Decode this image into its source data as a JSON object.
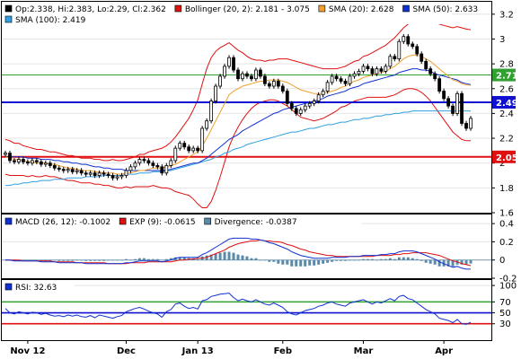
{
  "chart_data": [
    {
      "type": "candlestick",
      "legend": [
        {
          "label": "Op:2.338,  Hi:2.383,  Lo:2.29,  Cl:2.362",
          "color": "#000000"
        },
        {
          "label": "Bollinger (20, 2): 2.181 - 3.075",
          "color": "#e01010"
        },
        {
          "label": "SMA (20): 2.628",
          "color": "#f0a030"
        },
        {
          "label": "SMA (50): 2.633",
          "color": "#1030d0"
        },
        {
          "label": "SMA (100): 2.419",
          "color": "#30a0e0"
        }
      ],
      "ylim": [
        1.6,
        3.3
      ],
      "y_ticks": [
        1.6,
        1.8,
        2.0,
        2.2,
        2.4,
        2.6,
        2.8,
        3.0,
        3.2
      ],
      "y_tick_labels": [
        "1.6",
        "1.8",
        "2",
        "2.2",
        "2.4",
        "2.6",
        "2.8",
        "3",
        "3.2"
      ],
      "x_labels": [
        "Nov 12",
        "Dec",
        "Jan 13",
        "Feb",
        "Mar",
        "Apr"
      ],
      "x_label_index": [
        5,
        27,
        43,
        62,
        80,
        98
      ],
      "horizontal_lines": [
        {
          "value": 2.71,
          "label": "2.71",
          "color": "#30a030"
        },
        {
          "value": 2.49,
          "label": "2.49",
          "color": "#1010d0"
        },
        {
          "value": 2.05,
          "label": "2.05",
          "color": "#e01010"
        }
      ],
      "closes": [
        2.08,
        2.02,
        2.01,
        2.03,
        2.01,
        2.0,
        2.02,
        2.01,
        1.99,
        2.0,
        1.98,
        1.96,
        1.95,
        1.94,
        1.95,
        1.93,
        1.94,
        1.92,
        1.91,
        1.92,
        1.9,
        1.92,
        1.91,
        1.9,
        1.88,
        1.89,
        1.9,
        1.94,
        1.97,
        2.0,
        2.03,
        2.02,
        2.0,
        1.98,
        1.97,
        1.92,
        1.98,
        2.02,
        2.12,
        2.16,
        2.13,
        2.1,
        2.12,
        2.1,
        2.28,
        2.34,
        2.5,
        2.62,
        2.7,
        2.78,
        2.85,
        2.75,
        2.68,
        2.72,
        2.7,
        2.68,
        2.75,
        2.7,
        2.64,
        2.62,
        2.66,
        2.62,
        2.58,
        2.48,
        2.44,
        2.4,
        2.43,
        2.46,
        2.48,
        2.5,
        2.55,
        2.58,
        2.65,
        2.7,
        2.68,
        2.66,
        2.64,
        2.7,
        2.72,
        2.74,
        2.78,
        2.76,
        2.72,
        2.76,
        2.74,
        2.78,
        2.86,
        2.84,
        2.98,
        3.02,
        2.96,
        2.94,
        2.88,
        2.82,
        2.76,
        2.72,
        2.68,
        2.58,
        2.52,
        2.46,
        2.4,
        2.56,
        2.32,
        2.28,
        2.36
      ],
      "sma20": [
        2.05,
        2.04,
        2.03,
        2.03,
        2.02,
        2.01,
        2.01,
        2.0,
        2.0,
        2.0,
        1.99,
        1.99,
        1.98,
        1.97,
        1.96,
        1.96,
        1.95,
        1.94,
        1.94,
        1.94,
        1.93,
        1.93,
        1.92,
        1.92,
        1.92,
        1.91,
        1.91,
        1.92,
        1.92,
        1.93,
        1.94,
        1.94,
        1.95,
        1.96,
        1.96,
        1.96,
        1.97,
        1.98,
        1.99,
        2.01,
        2.03,
        2.05,
        2.07,
        2.09,
        2.14,
        2.2,
        2.27,
        2.34,
        2.41,
        2.48,
        2.55,
        2.58,
        2.6,
        2.62,
        2.63,
        2.64,
        2.65,
        2.66,
        2.66,
        2.67,
        2.67,
        2.67,
        2.66,
        2.65,
        2.63,
        2.61,
        2.59,
        2.58,
        2.57,
        2.56,
        2.56,
        2.56,
        2.57,
        2.58,
        2.59,
        2.61,
        2.62,
        2.64,
        2.66,
        2.67,
        2.69,
        2.7,
        2.71,
        2.72,
        2.73,
        2.74,
        2.76,
        2.78,
        2.81,
        2.84,
        2.86,
        2.87,
        2.87,
        2.86,
        2.84,
        2.82,
        2.79,
        2.76,
        2.73,
        2.7,
        2.67,
        2.66,
        2.64,
        2.63,
        2.628
      ],
      "sma50": [
        2.05,
        2.05,
        2.05,
        2.05,
        2.05,
        2.04,
        2.04,
        2.04,
        2.03,
        2.03,
        2.03,
        2.02,
        2.02,
        2.01,
        2.01,
        2.0,
        2.0,
        1.99,
        1.99,
        1.98,
        1.97,
        1.97,
        1.96,
        1.96,
        1.95,
        1.95,
        1.95,
        1.94,
        1.94,
        1.94,
        1.94,
        1.94,
        1.94,
        1.94,
        1.94,
        1.94,
        1.94,
        1.95,
        1.96,
        1.97,
        1.98,
        1.99,
        2.0,
        2.0,
        2.02,
        2.04,
        2.07,
        2.1,
        2.13,
        2.16,
        2.19,
        2.21,
        2.23,
        2.26,
        2.28,
        2.3,
        2.32,
        2.34,
        2.36,
        2.38,
        2.4,
        2.41,
        2.43,
        2.44,
        2.45,
        2.46,
        2.47,
        2.48,
        2.49,
        2.5,
        2.51,
        2.52,
        2.54,
        2.55,
        2.56,
        2.57,
        2.58,
        2.6,
        2.61,
        2.62,
        2.64,
        2.65,
        2.66,
        2.67,
        2.68,
        2.69,
        2.7,
        2.71,
        2.73,
        2.74,
        2.75,
        2.76,
        2.76,
        2.75,
        2.75,
        2.74,
        2.72,
        2.71,
        2.7,
        2.69,
        2.68,
        2.67,
        2.65,
        2.64,
        2.633
      ],
      "sma100": [
        1.82,
        1.82,
        1.83,
        1.83,
        1.84,
        1.84,
        1.85,
        1.85,
        1.86,
        1.86,
        1.86,
        1.87,
        1.87,
        1.87,
        1.88,
        1.88,
        1.88,
        1.88,
        1.89,
        1.89,
        1.89,
        1.89,
        1.9,
        1.9,
        1.9,
        1.9,
        1.9,
        1.91,
        1.91,
        1.91,
        1.92,
        1.92,
        1.92,
        1.93,
        1.93,
        1.93,
        1.94,
        1.94,
        1.95,
        1.96,
        1.97,
        1.98,
        1.99,
        2.0,
        2.01,
        2.02,
        2.03,
        2.05,
        2.06,
        2.08,
        2.09,
        2.11,
        2.12,
        2.13,
        2.15,
        2.16,
        2.17,
        2.18,
        2.19,
        2.2,
        2.21,
        2.22,
        2.23,
        2.24,
        2.25,
        2.25,
        2.26,
        2.27,
        2.28,
        2.28,
        2.29,
        2.3,
        2.31,
        2.31,
        2.32,
        2.33,
        2.33,
        2.34,
        2.35,
        2.35,
        2.36,
        2.36,
        2.37,
        2.38,
        2.38,
        2.39,
        2.39,
        2.4,
        2.4,
        2.41,
        2.41,
        2.42,
        2.42,
        2.42,
        2.42,
        2.42,
        2.42,
        2.42,
        2.42,
        2.42,
        2.42,
        2.42,
        2.42,
        2.42,
        2.419
      ],
      "bb_width": [
        0.14,
        0.14,
        0.13,
        0.13,
        0.12,
        0.12,
        0.11,
        0.11,
        0.11,
        0.1,
        0.1,
        0.1,
        0.1,
        0.1,
        0.1,
        0.1,
        0.1,
        0.1,
        0.1,
        0.1,
        0.1,
        0.1,
        0.1,
        0.1,
        0.11,
        0.11,
        0.11,
        0.11,
        0.12,
        0.12,
        0.13,
        0.13,
        0.14,
        0.14,
        0.15,
        0.16,
        0.17,
        0.19,
        0.22,
        0.25,
        0.28,
        0.31,
        0.36,
        0.42,
        0.5,
        0.56,
        0.58,
        0.56,
        0.52,
        0.47,
        0.42,
        0.36,
        0.31,
        0.27,
        0.23,
        0.2,
        0.18,
        0.17,
        0.16,
        0.16,
        0.16,
        0.17,
        0.18,
        0.19,
        0.2,
        0.21,
        0.22,
        0.22,
        0.22,
        0.22,
        0.21,
        0.2,
        0.19,
        0.18,
        0.17,
        0.16,
        0.16,
        0.16,
        0.16,
        0.16,
        0.17,
        0.17,
        0.18,
        0.19,
        0.2,
        0.21,
        0.22,
        0.23,
        0.24,
        0.25,
        0.26,
        0.27,
        0.28,
        0.29,
        0.3,
        0.32,
        0.34,
        0.36,
        0.38,
        0.4,
        0.42,
        0.44,
        0.45,
        0.45,
        0.447
      ]
    },
    {
      "type": "line",
      "legend": [
        {
          "label": "MACD (26, 12): -0.1002",
          "color": "#1030d0"
        },
        {
          "label": "EXP (9): -0.0615",
          "color": "#e01010"
        },
        {
          "label": "Divergence: -0.0387",
          "color": "#5a8aa8"
        }
      ],
      "ylim": [
        -0.2,
        0.5
      ],
      "y_ticks": [
        -0.2,
        0,
        0.2,
        0.4
      ],
      "y_tick_labels": [
        "-0.2",
        "0",
        "0.2",
        "0.4"
      ],
      "macd": [
        0.0,
        0.0,
        -0.01,
        -0.01,
        -0.01,
        -0.01,
        -0.01,
        -0.01,
        -0.02,
        -0.02,
        -0.02,
        -0.02,
        -0.03,
        -0.03,
        -0.03,
        -0.03,
        -0.03,
        -0.03,
        -0.04,
        -0.04,
        -0.04,
        -0.04,
        -0.04,
        -0.04,
        -0.04,
        -0.04,
        -0.04,
        -0.03,
        -0.03,
        -0.02,
        -0.01,
        -0.01,
        -0.01,
        -0.01,
        -0.01,
        -0.02,
        -0.01,
        0.0,
        0.02,
        0.03,
        0.03,
        0.03,
        0.03,
        0.03,
        0.06,
        0.08,
        0.11,
        0.14,
        0.17,
        0.2,
        0.23,
        0.24,
        0.24,
        0.24,
        0.24,
        0.23,
        0.23,
        0.22,
        0.21,
        0.19,
        0.18,
        0.16,
        0.14,
        0.12,
        0.09,
        0.07,
        0.05,
        0.04,
        0.03,
        0.02,
        0.02,
        0.02,
        0.02,
        0.03,
        0.03,
        0.03,
        0.03,
        0.04,
        0.04,
        0.04,
        0.05,
        0.05,
        0.05,
        0.05,
        0.06,
        0.06,
        0.07,
        0.07,
        0.09,
        0.1,
        0.1,
        0.1,
        0.09,
        0.07,
        0.05,
        0.03,
        0.01,
        -0.02,
        -0.04,
        -0.06,
        -0.08,
        -0.07,
        -0.09,
        -0.1,
        -0.1002
      ],
      "signal": [
        0.0,
        0.0,
        0.0,
        0.0,
        -0.01,
        -0.01,
        -0.01,
        -0.01,
        -0.01,
        -0.01,
        -0.01,
        -0.02,
        -0.02,
        -0.02,
        -0.02,
        -0.02,
        -0.03,
        -0.03,
        -0.03,
        -0.03,
        -0.03,
        -0.03,
        -0.03,
        -0.04,
        -0.04,
        -0.04,
        -0.04,
        -0.04,
        -0.03,
        -0.03,
        -0.03,
        -0.03,
        -0.02,
        -0.02,
        -0.02,
        -0.02,
        -0.02,
        -0.02,
        -0.01,
        0.0,
        0.0,
        0.01,
        0.01,
        0.02,
        0.02,
        0.03,
        0.05,
        0.07,
        0.09,
        0.11,
        0.14,
        0.16,
        0.18,
        0.19,
        0.2,
        0.21,
        0.21,
        0.22,
        0.21,
        0.21,
        0.2,
        0.2,
        0.19,
        0.17,
        0.16,
        0.14,
        0.12,
        0.11,
        0.09,
        0.08,
        0.07,
        0.06,
        0.05,
        0.05,
        0.04,
        0.04,
        0.04,
        0.04,
        0.04,
        0.04,
        0.04,
        0.04,
        0.04,
        0.05,
        0.05,
        0.05,
        0.05,
        0.06,
        0.06,
        0.07,
        0.07,
        0.08,
        0.08,
        0.08,
        0.08,
        0.07,
        0.06,
        0.05,
        0.03,
        0.01,
        -0.01,
        -0.02,
        -0.04,
        -0.05,
        -0.0615
      ]
    },
    {
      "type": "line",
      "legend": [
        {
          "label": "RSI: 32.63",
          "color": "#1030d0"
        }
      ],
      "ylim": [
        0,
        110
      ],
      "y_ticks": [
        30,
        50,
        70,
        100
      ],
      "y_tick_labels": [
        "30",
        "50",
        "70",
        "100"
      ],
      "horizontal_lines": [
        {
          "value": 70,
          "color": "#30a030"
        },
        {
          "value": 50,
          "color": "#1010d0"
        },
        {
          "value": 30,
          "color": "#e01010"
        }
      ],
      "rsi": [
        58,
        50,
        48,
        52,
        50,
        48,
        51,
        50,
        47,
        49,
        46,
        44,
        45,
        43,
        46,
        44,
        46,
        43,
        42,
        45,
        41,
        46,
        44,
        42,
        40,
        43,
        45,
        52,
        55,
        58,
        60,
        57,
        53,
        50,
        48,
        42,
        52,
        56,
        66,
        68,
        62,
        58,
        60,
        57,
        72,
        74,
        80,
        82,
        84,
        85,
        86,
        78,
        72,
        75,
        72,
        70,
        74,
        70,
        66,
        64,
        68,
        64,
        60,
        52,
        48,
        46,
        50,
        54,
        56,
        58,
        62,
        64,
        68,
        70,
        66,
        64,
        62,
        68,
        70,
        72,
        74,
        70,
        66,
        70,
        68,
        72,
        76,
        72,
        80,
        82,
        76,
        74,
        68,
        62,
        56,
        52,
        48,
        40,
        38,
        36,
        32,
        38,
        30,
        29,
        32.63
      ]
    }
  ]
}
